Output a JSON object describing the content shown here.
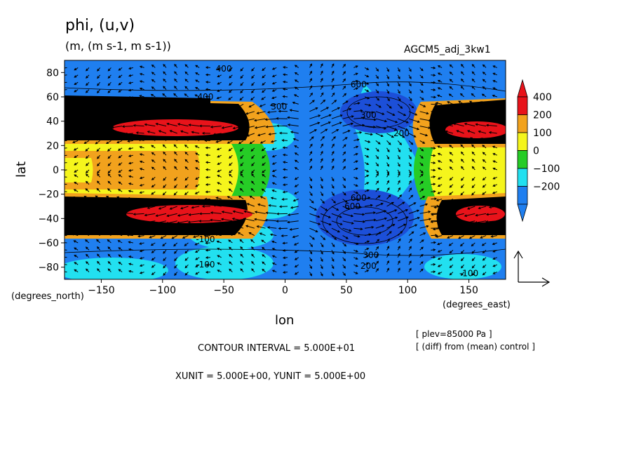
{
  "header": {
    "title": "phi, (u,v)",
    "units": "(m, (m s-1, m s-1))",
    "run_tag": "AGCM5_adj_3kw1"
  },
  "footer": {
    "contour_interval": "CONTOUR INTERVAL = 5.000E+01",
    "xy_unit": "XUNIT = 5.000E+00, YUNIT = 5.000E+00",
    "plev_note": "[ plev=85000 Pa ]",
    "diff_note": "[ (diff) from (mean) control ]"
  },
  "chart_data": {
    "type": "heatmap",
    "overlay": "vector",
    "xlabel": "lon",
    "ylabel": "lat",
    "x_unit_label": "(degrees_east)",
    "y_unit_label": "(degrees_north)",
    "xlim": [
      -180,
      180
    ],
    "ylim": [
      -90,
      90
    ],
    "x_ticks": [
      -150,
      -100,
      -50,
      0,
      50,
      100,
      150
    ],
    "y_ticks": [
      80,
      60,
      40,
      20,
      0,
      -20,
      -40,
      -60,
      -80
    ],
    "x_tick_labels": [
      "−150",
      "−100",
      "−50",
      "0",
      "50",
      "100",
      "150"
    ],
    "y_tick_labels": [
      "80",
      "60",
      "40",
      "20",
      "0",
      "−20",
      "−40",
      "−60",
      "−80"
    ],
    "colorbar": {
      "labels": [
        "400",
        "200",
        "100",
        "0",
        "−100",
        "−200"
      ],
      "colors": [
        "#e8131a",
        "#f2a21d",
        "#f5f51c",
        "#26cc26",
        "#22e0f0",
        "#1f7ff0"
      ]
    },
    "contour_labels": [
      {
        "text": "400",
        "lon": -50,
        "lat": 83
      },
      {
        "text": "600",
        "lon": 60,
        "lat": 70
      },
      {
        "text": "400",
        "lon": -65,
        "lat": 60
      },
      {
        "text": "300",
        "lon": -5,
        "lat": 52
      },
      {
        "text": "300",
        "lon": 68,
        "lat": 45
      },
      {
        "text": "200",
        "lon": 95,
        "lat": 30
      },
      {
        "text": "100",
        "lon": -60,
        "lat": -50
      },
      {
        "text": "-100",
        "lon": -65,
        "lat": -57
      },
      {
        "text": "-100",
        "lon": -65,
        "lat": -78
      },
      {
        "text": "600",
        "lon": 60,
        "lat": -23
      },
      {
        "text": "600",
        "lon": 55,
        "lat": -30
      },
      {
        "text": "300",
        "lon": 70,
        "lat": -70
      },
      {
        "text": "200",
        "lon": 68,
        "lat": -79
      },
      {
        "text": "-100",
        "lon": 150,
        "lat": -85
      }
    ]
  }
}
